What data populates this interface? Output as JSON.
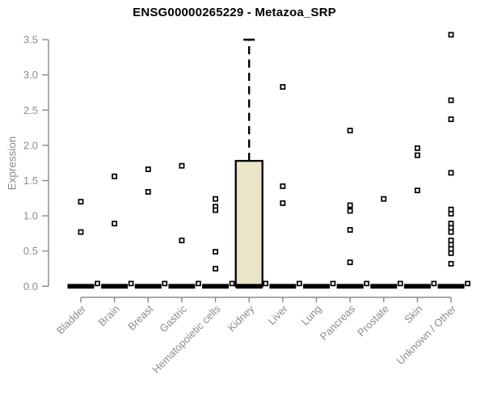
{
  "chart_data": {
    "type": "boxplot",
    "title": "ENSG00000265229 - Metazoa_SRP",
    "ylabel": "Expression",
    "xlabel": "",
    "ylim": [
      0,
      3.5
    ],
    "ytick_labels": [
      "0.0",
      "0.5",
      "1.0",
      "1.5",
      "2.0",
      "2.5",
      "3.0",
      "3.5"
    ],
    "ytick_values": [
      0,
      0.5,
      1.0,
      1.5,
      2.0,
      2.5,
      3.0,
      3.5
    ],
    "grid": false,
    "legend": "none",
    "point_marker": "open-square",
    "colors": {
      "box_fill": "#EAE5C9",
      "box_stroke": "#000000",
      "median": "#000000",
      "axis": "#8c8c8c",
      "tick_label": "#8c8c8c",
      "title": "#000000",
      "point_stroke": "#000000",
      "point_fill": "#ffffff",
      "background": "#ffffff"
    },
    "categories": [
      "Bladder",
      "Brain",
      "Breast",
      "Gastric",
      "Hematopoietic cells",
      "Kidney",
      "Liver",
      "Lung",
      "Pancreas",
      "Prostate",
      "Skin",
      "Unknown / Other"
    ],
    "series": [
      {
        "label": "Bladder",
        "box": {
          "whisker_low": 0,
          "q1": 0,
          "median": 0,
          "q3": 0,
          "whisker_high": 0
        },
        "zero_point": true,
        "outliers": [
          1.2,
          0.77
        ]
      },
      {
        "label": "Brain",
        "box": {
          "whisker_low": 0,
          "q1": 0,
          "median": 0,
          "q3": 0,
          "whisker_high": 0
        },
        "zero_point": true,
        "outliers": [
          1.56,
          0.89
        ]
      },
      {
        "label": "Breast",
        "box": {
          "whisker_low": 0,
          "q1": 0,
          "median": 0,
          "q3": 0,
          "whisker_high": 0
        },
        "zero_point": true,
        "outliers": [
          1.66,
          1.34
        ]
      },
      {
        "label": "Gastric",
        "box": {
          "whisker_low": 0,
          "q1": 0,
          "median": 0,
          "q3": 0,
          "whisker_high": 0
        },
        "zero_point": true,
        "outliers": [
          1.71,
          0.65
        ]
      },
      {
        "label": "Hematopoietic cells",
        "box": {
          "whisker_low": 0,
          "q1": 0,
          "median": 0,
          "q3": 0,
          "whisker_high": 0
        },
        "zero_point": true,
        "outliers": [
          1.24,
          1.13,
          1.08,
          0.49,
          0.25
        ]
      },
      {
        "label": "Kidney",
        "box": {
          "whisker_low": 0,
          "q1": 0,
          "median": 0,
          "q3": 1.78,
          "whisker_high": 3.5
        },
        "zero_point": true,
        "outliers": []
      },
      {
        "label": "Liver",
        "box": {
          "whisker_low": 0,
          "q1": 0,
          "median": 0,
          "q3": 0,
          "whisker_high": 0
        },
        "zero_point": true,
        "outliers": [
          2.83,
          1.42,
          1.18
        ]
      },
      {
        "label": "Lung",
        "box": {
          "whisker_low": 0,
          "q1": 0,
          "median": 0,
          "q3": 0,
          "whisker_high": 0
        },
        "zero_point": true,
        "outliers": []
      },
      {
        "label": "Pancreas",
        "box": {
          "whisker_low": 0,
          "q1": 0,
          "median": 0,
          "q3": 0,
          "whisker_high": 0
        },
        "zero_point": true,
        "outliers": [
          2.21,
          1.15,
          1.07,
          0.8,
          0.34
        ]
      },
      {
        "label": "Prostate",
        "box": {
          "whisker_low": 0,
          "q1": 0,
          "median": 0,
          "q3": 0,
          "whisker_high": 0
        },
        "zero_point": true,
        "outliers": [
          1.24
        ]
      },
      {
        "label": "Skin",
        "box": {
          "whisker_low": 0,
          "q1": 0,
          "median": 0,
          "q3": 0,
          "whisker_high": 0
        },
        "zero_point": true,
        "outliers": [
          1.96,
          1.86,
          1.36
        ]
      },
      {
        "label": "Unknown / Other",
        "box": {
          "whisker_low": 0,
          "q1": 0,
          "median": 0,
          "q3": 0,
          "whisker_high": 0
        },
        "zero_point": true,
        "outliers": [
          3.57,
          2.64,
          2.37,
          1.61,
          1.09,
          1.03,
          0.89,
          0.83,
          0.77,
          0.65,
          0.59,
          0.53,
          0.47,
          0.32
        ]
      }
    ]
  }
}
